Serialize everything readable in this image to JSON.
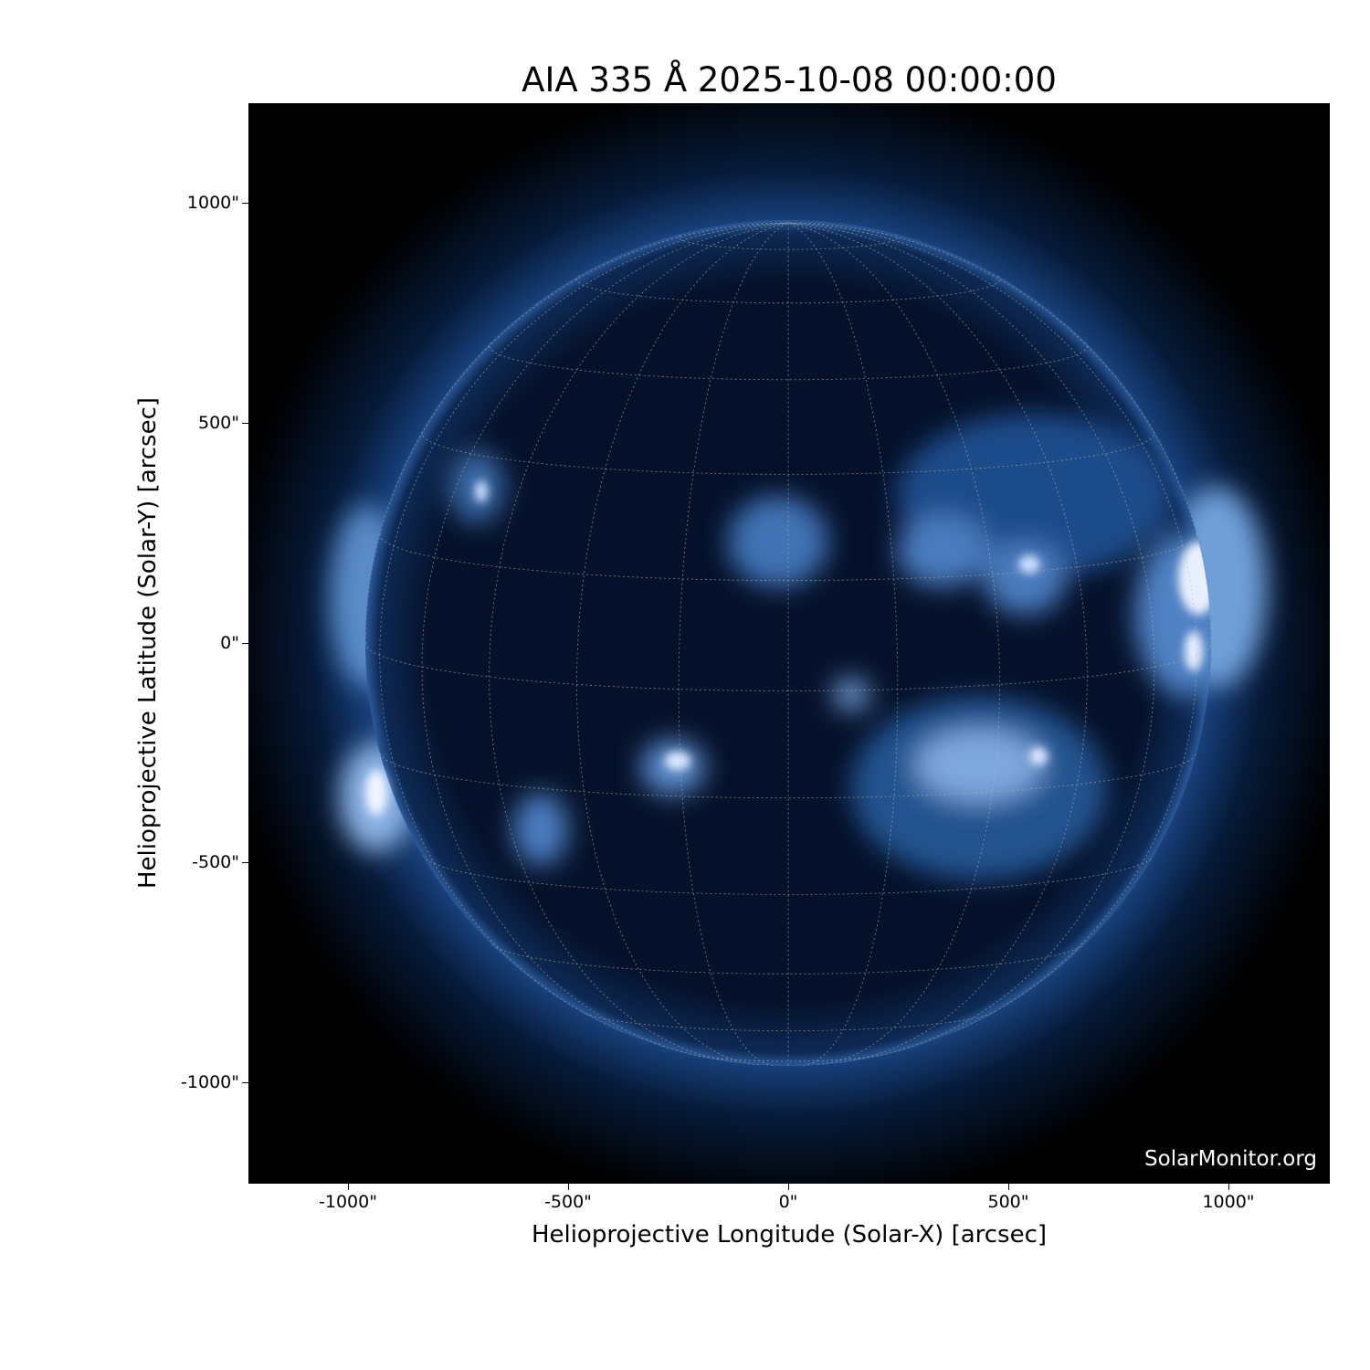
{
  "title": "AIA 335 Å 2025-10-08 00:00:00",
  "xlabel": "Helioprojective Longitude (Solar-X) [arcsec]",
  "ylabel": "Helioprojective Latitude (Solar-Y) [arcsec]",
  "watermark": "SolarMonitor.org",
  "x_ticks": [
    "-1000\"",
    "-500\"",
    "0\"",
    "500\"",
    "1000\""
  ],
  "y_ticks": [
    "1000\"",
    "500\"",
    "0\"",
    "-500\"",
    "-1000\""
  ],
  "colors": {
    "background": "#000000",
    "disk": "#06132a",
    "corona": "#3a6fb0",
    "bright": "#e8f0ff",
    "grid": "#b8b8a0"
  }
}
